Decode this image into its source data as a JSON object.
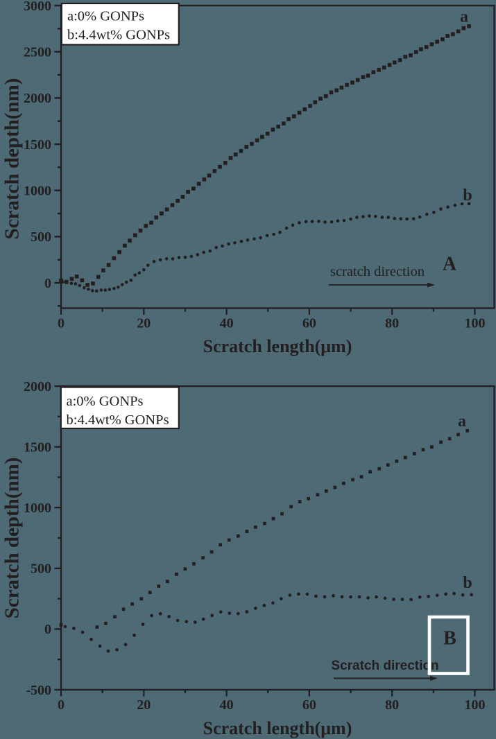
{
  "page": {
    "background_color": "#4d6a75",
    "ink_color": "#231f20",
    "legend_fill": "#ffffff",
    "panel_box_color": "#ffffff"
  },
  "chart_data": [
    {
      "id": "A",
      "type": "scatter",
      "xlabel": "Scratch length(μm)",
      "ylabel": "Scratch depth(nm)",
      "xlim": [
        0,
        104.7
      ],
      "ylim": [
        -273.75,
        3000
      ],
      "x_ticks": [
        0,
        20,
        40,
        60,
        80,
        100
      ],
      "x_minor_step": 10,
      "y_ticks": [
        0,
        500,
        1000,
        1500,
        2000,
        2500,
        3000
      ],
      "y_minor_step": 250,
      "legend": {
        "lines": [
          "a:0% GONPs",
          "b:4.4wt% GONPs"
        ],
        "position": "top-left"
      },
      "direction_label": "scratch direction",
      "panel_label": "A",
      "panel_label_boxed": false,
      "series": [
        {
          "name": "a",
          "marker": "square",
          "points": [
            [
              0.0,
              25
            ],
            [
              1.3,
              11
            ],
            [
              2.6,
              43
            ],
            [
              3.8,
              69
            ],
            [
              5.1,
              27
            ],
            [
              6.4,
              -22
            ],
            [
              7.7,
              -7
            ],
            [
              9.0,
              64
            ],
            [
              10.2,
              135
            ],
            [
              11.5,
              194
            ],
            [
              12.8,
              267
            ],
            [
              14.1,
              333
            ],
            [
              15.4,
              402
            ],
            [
              16.6,
              457
            ],
            [
              17.9,
              515
            ],
            [
              19.2,
              565
            ],
            [
              20.5,
              616
            ],
            [
              21.8,
              651
            ],
            [
              23.0,
              707
            ],
            [
              24.3,
              751
            ],
            [
              25.6,
              794
            ],
            [
              26.9,
              841
            ],
            [
              28.2,
              887
            ],
            [
              29.4,
              931
            ],
            [
              30.7,
              984
            ],
            [
              32.0,
              1020
            ],
            [
              33.3,
              1072
            ],
            [
              34.6,
              1120
            ],
            [
              35.8,
              1161
            ],
            [
              37.1,
              1209
            ],
            [
              38.4,
              1255
            ],
            [
              39.7,
              1298
            ],
            [
              41.0,
              1351
            ],
            [
              42.2,
              1389
            ],
            [
              43.5,
              1427
            ],
            [
              44.8,
              1471
            ],
            [
              46.1,
              1503
            ],
            [
              47.4,
              1542
            ],
            [
              48.6,
              1579
            ],
            [
              49.9,
              1614
            ],
            [
              51.2,
              1658
            ],
            [
              52.5,
              1691
            ],
            [
              53.8,
              1724
            ],
            [
              55.0,
              1771
            ],
            [
              56.3,
              1802
            ],
            [
              57.6,
              1841
            ],
            [
              58.9,
              1878
            ],
            [
              60.2,
              1914
            ],
            [
              61.4,
              1954
            ],
            [
              62.7,
              1993
            ],
            [
              64.0,
              2020
            ],
            [
              65.3,
              2060
            ],
            [
              66.6,
              2083
            ],
            [
              67.8,
              2112
            ],
            [
              69.1,
              2141
            ],
            [
              70.4,
              2167
            ],
            [
              71.7,
              2195
            ],
            [
              73.0,
              2227
            ],
            [
              74.2,
              2242
            ],
            [
              75.5,
              2279
            ],
            [
              76.8,
              2304
            ],
            [
              78.1,
              2329
            ],
            [
              79.4,
              2357
            ],
            [
              80.6,
              2384
            ],
            [
              81.9,
              2410
            ],
            [
              83.2,
              2446
            ],
            [
              84.5,
              2462
            ],
            [
              85.8,
              2497
            ],
            [
              87.0,
              2527
            ],
            [
              88.3,
              2551
            ],
            [
              89.6,
              2581
            ],
            [
              90.9,
              2609
            ],
            [
              92.2,
              2635
            ],
            [
              93.4,
              2671
            ],
            [
              94.7,
              2690
            ],
            [
              96.0,
              2720
            ],
            [
              97.3,
              2755
            ],
            [
              98.6,
              2777
            ]
          ]
        },
        {
          "name": "b",
          "marker": "circle",
          "points": [
            [
              0.4,
              9
            ],
            [
              1.4,
              2
            ],
            [
              2.5,
              -6
            ],
            [
              3.5,
              -10
            ],
            [
              4.5,
              -29
            ],
            [
              5.6,
              -53
            ],
            [
              6.6,
              -68
            ],
            [
              7.6,
              -84
            ],
            [
              8.6,
              -88
            ],
            [
              9.7,
              -78
            ],
            [
              10.7,
              -79
            ],
            [
              11.7,
              -71
            ],
            [
              12.8,
              -61
            ],
            [
              13.8,
              -47
            ],
            [
              14.8,
              -19
            ],
            [
              15.8,
              7
            ],
            [
              16.9,
              28
            ],
            [
              17.9,
              84
            ],
            [
              18.9,
              108
            ],
            [
              20.0,
              142
            ],
            [
              21.0,
              190
            ],
            [
              22.5,
              231
            ],
            [
              24.0,
              249
            ],
            [
              25.5,
              261
            ],
            [
              27.0,
              260
            ],
            [
              28.5,
              274
            ],
            [
              30.0,
              277
            ],
            [
              31.5,
              286
            ],
            [
              33.0,
              305
            ],
            [
              34.5,
              330
            ],
            [
              36.0,
              345
            ],
            [
              37.5,
              382
            ],
            [
              39.0,
              398
            ],
            [
              40.5,
              421
            ],
            [
              42.0,
              433
            ],
            [
              43.6,
              449
            ],
            [
              45.1,
              463
            ],
            [
              46.7,
              476
            ],
            [
              48.2,
              488
            ],
            [
              49.8,
              512
            ],
            [
              51.4,
              525
            ],
            [
              52.9,
              547
            ],
            [
              54.5,
              592
            ],
            [
              56.0,
              624
            ],
            [
              57.6,
              650
            ],
            [
              59.2,
              662
            ],
            [
              60.7,
              663
            ],
            [
              62.3,
              666
            ],
            [
              63.8,
              657
            ],
            [
              65.4,
              659
            ],
            [
              66.9,
              670
            ],
            [
              68.4,
              675
            ],
            [
              70.0,
              690
            ],
            [
              71.5,
              708
            ],
            [
              73.0,
              716
            ],
            [
              74.5,
              724
            ],
            [
              76.0,
              719
            ],
            [
              77.6,
              709
            ],
            [
              79.1,
              708
            ],
            [
              80.6,
              697
            ],
            [
              82.1,
              693
            ],
            [
              83.6,
              691
            ],
            [
              85.2,
              693
            ],
            [
              86.7,
              712
            ],
            [
              88.4,
              742
            ],
            [
              90.1,
              763
            ],
            [
              91.8,
              799
            ],
            [
              93.5,
              820
            ],
            [
              95.2,
              839
            ],
            [
              96.9,
              854
            ],
            [
              98.6,
              856
            ]
          ]
        }
      ]
    },
    {
      "id": "B",
      "type": "scatter",
      "xlabel": "Scratch length(μm)",
      "ylabel": "Scratch depth(nm)",
      "xlim": [
        0,
        104.7
      ],
      "ylim": [
        -500,
        2000
      ],
      "x_ticks": [
        0,
        20,
        40,
        60,
        80,
        100
      ],
      "x_minor_step": 10,
      "y_ticks": [
        -500,
        0,
        500,
        1000,
        1500,
        2000
      ],
      "y_minor_step": 250,
      "legend": {
        "lines": [
          "a:0% GONPs",
          "b:4.4wt% GONPs"
        ],
        "position": "top-left"
      },
      "direction_label": "Scratch direction",
      "panel_label": "B",
      "panel_label_boxed": true,
      "series": [
        {
          "name": "a",
          "marker": "square",
          "points": [
            [
              0,
              35
            ],
            [
              8.7,
              16
            ],
            [
              10.8,
              47
            ],
            [
              13.0,
              101
            ],
            [
              15.1,
              163
            ],
            [
              17.2,
              206
            ],
            [
              19.4,
              249
            ],
            [
              21.5,
              301
            ],
            [
              23.6,
              353
            ],
            [
              25.7,
              392
            ],
            [
              27.9,
              451
            ],
            [
              30.0,
              495
            ],
            [
              32.1,
              537
            ],
            [
              34.3,
              587
            ],
            [
              36.4,
              635
            ],
            [
              38.5,
              694
            ],
            [
              40.6,
              733
            ],
            [
              42.8,
              766
            ],
            [
              44.9,
              804
            ],
            [
              47.0,
              839
            ],
            [
              49.2,
              869
            ],
            [
              51.3,
              909
            ],
            [
              53.4,
              949
            ],
            [
              55.6,
              1008
            ],
            [
              57.7,
              1049
            ],
            [
              59.8,
              1074
            ],
            [
              62.0,
              1106
            ],
            [
              64.1,
              1136
            ],
            [
              66.2,
              1166
            ],
            [
              68.3,
              1200
            ],
            [
              70.5,
              1230
            ],
            [
              72.6,
              1254
            ],
            [
              74.7,
              1295
            ],
            [
              76.9,
              1320
            ],
            [
              79.0,
              1351
            ],
            [
              81.1,
              1382
            ],
            [
              83.2,
              1412
            ],
            [
              85.4,
              1444
            ],
            [
              87.5,
              1477
            ],
            [
              89.6,
              1499
            ],
            [
              91.8,
              1539
            ],
            [
              93.9,
              1567
            ],
            [
              96.0,
              1602
            ],
            [
              98.2,
              1633
            ]
          ]
        },
        {
          "name": "b",
          "marker": "circle",
          "points": [
            [
              1.0,
              20
            ],
            [
              3.1,
              6
            ],
            [
              5.2,
              -27
            ],
            [
              7.3,
              -85
            ],
            [
              9.4,
              -141
            ],
            [
              11.4,
              -181
            ],
            [
              13.5,
              -170
            ],
            [
              15.6,
              -128
            ],
            [
              17.7,
              -51
            ],
            [
              19.8,
              39
            ],
            [
              21.9,
              111
            ],
            [
              24.0,
              126
            ],
            [
              26.1,
              103
            ],
            [
              28.2,
              71
            ],
            [
              30.3,
              61
            ],
            [
              32.4,
              56
            ],
            [
              34.4,
              81
            ],
            [
              36.5,
              112
            ],
            [
              38.6,
              141
            ],
            [
              40.7,
              130
            ],
            [
              42.8,
              127
            ],
            [
              44.9,
              142
            ],
            [
              47.0,
              171
            ],
            [
              49.1,
              194
            ],
            [
              51.2,
              215
            ],
            [
              53.2,
              249
            ],
            [
              55.3,
              279
            ],
            [
              57.4,
              288
            ],
            [
              59.5,
              287
            ],
            [
              61.6,
              271
            ],
            [
              63.7,
              265
            ],
            [
              65.8,
              274
            ],
            [
              67.9,
              265
            ],
            [
              70.0,
              264
            ],
            [
              72.1,
              265
            ],
            [
              74.2,
              257
            ],
            [
              76.2,
              264
            ],
            [
              78.3,
              254
            ],
            [
              80.4,
              245
            ],
            [
              82.5,
              244
            ],
            [
              84.6,
              243
            ],
            [
              86.7,
              263
            ],
            [
              88.8,
              268
            ],
            [
              90.9,
              278
            ],
            [
              93.0,
              288
            ],
            [
              95.0,
              292
            ],
            [
              97.1,
              281
            ],
            [
              99.2,
              283
            ]
          ]
        }
      ]
    }
  ]
}
